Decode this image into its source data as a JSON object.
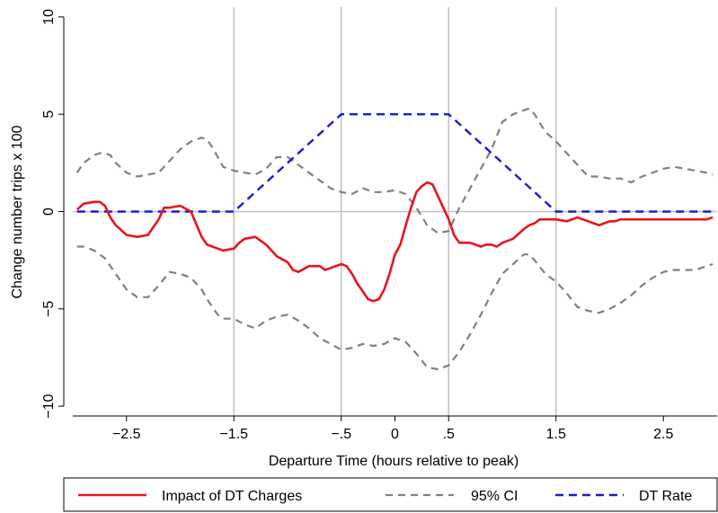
{
  "chart_data": {
    "type": "line",
    "xlabel": "Departure Time (hours relative to peak)",
    "ylabel": "Change number trips x 100",
    "xlim": [
      -3.0,
      3.0
    ],
    "ylim": [
      -10.5,
      10.5
    ],
    "x_ticks": [
      -2.5,
      -1.5,
      -0.5,
      0,
      0.5,
      1.5,
      2.5
    ],
    "x_tick_labels": [
      "−2.5",
      "−1.5",
      "−.5",
      "0",
      ".5",
      "1.5",
      "2.5"
    ],
    "y_ticks": [
      -10,
      -5,
      0,
      5,
      10
    ],
    "y_tick_labels": [
      "−10",
      "−5",
      "0",
      "5",
      "10"
    ],
    "vertical_lines": [
      -1.5,
      -0.5,
      0.5,
      1.5
    ],
    "grid": false,
    "legend_position": "bottom",
    "colors": {
      "impact": "#e8141e",
      "ci": "#808080",
      "rate": "#1a1ad6",
      "ref": "#c0c0c0"
    },
    "series": [
      {
        "name": "Impact of DT Charges",
        "style": "solid",
        "x": [
          -2.96,
          -2.9,
          -2.8,
          -2.75,
          -2.7,
          -2.65,
          -2.6,
          -2.5,
          -2.4,
          -2.3,
          -2.25,
          -2.2,
          -2.15,
          -2.1,
          -2.0,
          -1.9,
          -1.8,
          -1.75,
          -1.7,
          -1.65,
          -1.6,
          -1.5,
          -1.45,
          -1.4,
          -1.3,
          -1.2,
          -1.15,
          -1.1,
          -1.0,
          -0.95,
          -0.9,
          -0.8,
          -0.7,
          -0.65,
          -0.6,
          -0.5,
          -0.45,
          -0.4,
          -0.35,
          -0.3,
          -0.25,
          -0.2,
          -0.15,
          -0.1,
          -0.05,
          0.0,
          0.05,
          0.1,
          0.15,
          0.2,
          0.25,
          0.3,
          0.35,
          0.4,
          0.45,
          0.5,
          0.55,
          0.6,
          0.7,
          0.8,
          0.85,
          0.9,
          0.95,
          1.0,
          1.1,
          1.2,
          1.25,
          1.3,
          1.35,
          1.4,
          1.5,
          1.6,
          1.7,
          1.75,
          1.8,
          1.85,
          1.9,
          1.95,
          2.0,
          2.05,
          2.1,
          2.15,
          2.2,
          2.25,
          2.3,
          2.4,
          2.5,
          2.6,
          2.65,
          2.7,
          2.8,
          2.9,
          2.96
        ],
        "y": [
          0.1,
          0.4,
          0.5,
          0.5,
          0.3,
          -0.3,
          -0.7,
          -1.2,
          -1.3,
          -1.2,
          -0.8,
          -0.4,
          0.2,
          0.2,
          0.3,
          0.0,
          -1.3,
          -1.7,
          -1.8,
          -1.9,
          -2.0,
          -1.9,
          -1.6,
          -1.4,
          -1.3,
          -1.7,
          -2.0,
          -2.3,
          -2.6,
          -3.0,
          -3.1,
          -2.8,
          -2.8,
          -3.0,
          -2.9,
          -2.7,
          -2.8,
          -3.2,
          -3.7,
          -4.1,
          -4.5,
          -4.6,
          -4.5,
          -4.0,
          -3.2,
          -2.2,
          -1.7,
          -0.7,
          0.2,
          1.0,
          1.3,
          1.5,
          1.4,
          0.8,
          0.2,
          -0.4,
          -1.2,
          -1.6,
          -1.6,
          -1.8,
          -1.7,
          -1.7,
          -1.8,
          -1.6,
          -1.4,
          -0.9,
          -0.7,
          -0.6,
          -0.4,
          -0.4,
          -0.4,
          -0.5,
          -0.3,
          -0.4,
          -0.5,
          -0.6,
          -0.7,
          -0.6,
          -0.5,
          -0.5,
          -0.4,
          -0.4,
          -0.4,
          -0.4,
          -0.4,
          -0.4,
          -0.4,
          -0.4,
          -0.4,
          -0.4,
          -0.4,
          -0.4,
          -0.3
        ]
      },
      {
        "name": "95% CI",
        "style": "dashed",
        "x": [
          -2.96,
          -2.9,
          -2.8,
          -2.75,
          -2.7,
          -2.65,
          -2.6,
          -2.5,
          -2.4,
          -2.3,
          -2.2,
          -2.1,
          -2.0,
          -1.9,
          -1.8,
          -1.75,
          -1.7,
          -1.65,
          -1.6,
          -1.5,
          -1.4,
          -1.3,
          -1.2,
          -1.1,
          -1.0,
          -0.9,
          -0.8,
          -0.7,
          -0.6,
          -0.5,
          -0.4,
          -0.3,
          -0.2,
          -0.1,
          0.0,
          0.1,
          0.2,
          0.3,
          0.4,
          0.5,
          0.6,
          0.7,
          0.8,
          0.9,
          1.0,
          1.1,
          1.2,
          1.25,
          1.3,
          1.4,
          1.5,
          1.6,
          1.7,
          1.8,
          1.9,
          2.0,
          2.1,
          2.2,
          2.3,
          2.4,
          2.5,
          2.6,
          2.7,
          2.8,
          2.9,
          2.96
        ],
        "y": [
          2.0,
          2.5,
          2.9,
          3.0,
          3.0,
          2.9,
          2.5,
          2.0,
          1.8,
          1.9,
          2.0,
          2.6,
          3.2,
          3.6,
          3.8,
          3.7,
          3.3,
          2.8,
          2.3,
          2.1,
          2.0,
          1.9,
          2.2,
          2.8,
          2.8,
          2.4,
          2.0,
          1.6,
          1.2,
          1.0,
          0.9,
          1.2,
          1.0,
          1.0,
          1.1,
          0.9,
          0.2,
          -0.7,
          -1.1,
          -1.0,
          0.2,
          1.2,
          2.2,
          3.2,
          4.6,
          5.0,
          5.2,
          5.3,
          5.0,
          4.1,
          3.6,
          3.0,
          2.4,
          1.8,
          1.8,
          1.7,
          1.7,
          1.5,
          1.8,
          2.0,
          2.2,
          2.3,
          2.2,
          2.1,
          2.0,
          1.9
        ]
      },
      {
        "name": "95% CI lower",
        "style": "dashed",
        "x": [
          -2.96,
          -2.9,
          -2.8,
          -2.7,
          -2.6,
          -2.5,
          -2.4,
          -2.3,
          -2.2,
          -2.1,
          -2.0,
          -1.9,
          -1.8,
          -1.75,
          -1.7,
          -1.65,
          -1.6,
          -1.5,
          -1.4,
          -1.3,
          -1.2,
          -1.1,
          -1.0,
          -0.9,
          -0.8,
          -0.7,
          -0.6,
          -0.5,
          -0.4,
          -0.3,
          -0.2,
          -0.1,
          0.0,
          0.1,
          0.2,
          0.3,
          0.4,
          0.45,
          0.5,
          0.6,
          0.7,
          0.8,
          0.9,
          1.0,
          1.1,
          1.2,
          1.25,
          1.3,
          1.4,
          1.5,
          1.6,
          1.7,
          1.8,
          1.9,
          2.0,
          2.1,
          2.2,
          2.3,
          2.4,
          2.5,
          2.6,
          2.7,
          2.8,
          2.9,
          2.96
        ],
        "y": [
          -1.8,
          -1.8,
          -2.0,
          -2.4,
          -3.2,
          -4.0,
          -4.4,
          -4.4,
          -3.8,
          -3.1,
          -3.2,
          -3.4,
          -4.0,
          -4.5,
          -4.9,
          -5.3,
          -5.5,
          -5.5,
          -5.8,
          -6.0,
          -5.6,
          -5.4,
          -5.3,
          -5.6,
          -6.0,
          -6.5,
          -6.8,
          -7.1,
          -7.0,
          -6.8,
          -6.9,
          -6.8,
          -6.5,
          -6.7,
          -7.3,
          -8.0,
          -8.1,
          -8.0,
          -7.9,
          -7.2,
          -6.3,
          -5.3,
          -4.2,
          -3.2,
          -2.7,
          -2.2,
          -2.2,
          -2.5,
          -3.2,
          -3.6,
          -4.2,
          -4.9,
          -5.1,
          -5.2,
          -5.0,
          -4.7,
          -4.3,
          -3.8,
          -3.4,
          -3.1,
          -3.0,
          -3.0,
          -3.0,
          -2.8,
          -2.7
        ]
      },
      {
        "name": "DT Rate",
        "style": "dashed",
        "x": [
          -2.96,
          -1.5,
          -0.5,
          0.5,
          1.5,
          2.96
        ],
        "y": [
          0,
          0,
          5,
          5,
          0,
          0
        ]
      }
    ]
  },
  "legend": {
    "items": [
      {
        "label": "Impact of DT Charges",
        "key": "impact"
      },
      {
        "label": "95% CI",
        "key": "ci"
      },
      {
        "label": "DT Rate",
        "key": "rate"
      }
    ]
  }
}
